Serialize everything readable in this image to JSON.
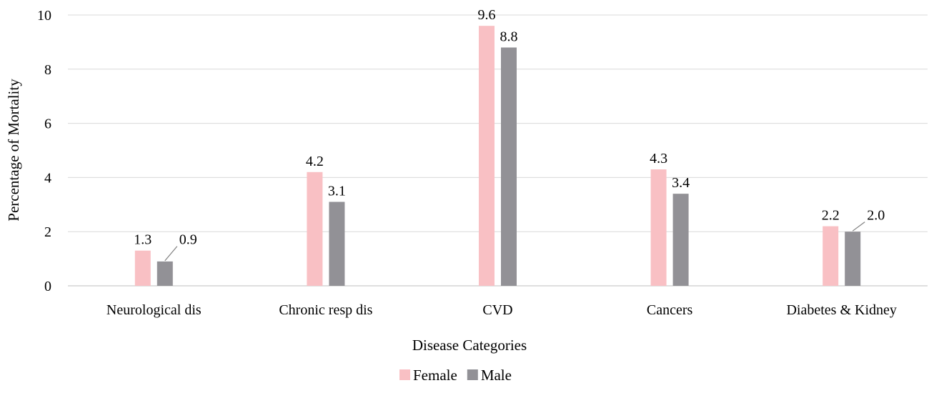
{
  "chart_data": {
    "type": "bar",
    "title": "",
    "xlabel": "Disease Categories",
    "ylabel": "Percentage of Mortality",
    "ylim": [
      0,
      10
    ],
    "yticks": [
      0,
      2,
      4,
      6,
      8,
      10
    ],
    "grid": true,
    "legend_position": "bottom",
    "categories": [
      "Neurological dis",
      "Chronic resp dis",
      "CVD",
      "Cancers",
      "Diabetes & Kidney"
    ],
    "series": [
      {
        "name": "Female",
        "color": "#f9c0c4",
        "values": [
          1.3,
          4.2,
          9.6,
          4.3,
          2.2
        ],
        "labels": [
          "1.3",
          "4.2",
          "9.6",
          "4.3",
          "2.2"
        ]
      },
      {
        "name": "Male",
        "color": "#929196",
        "values": [
          0.9,
          3.1,
          8.8,
          3.4,
          2.0
        ],
        "labels": [
          "0.9",
          "3.1",
          "8.8",
          "3.4",
          "2.0"
        ]
      }
    ]
  }
}
